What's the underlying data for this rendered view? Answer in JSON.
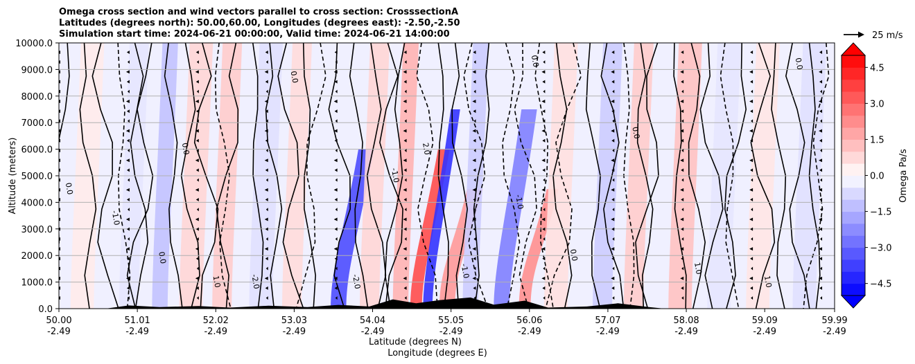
{
  "chart_data": {
    "type": "heatmap",
    "title_lines": [
      "Omega cross section and wind vectors parallel to cross section: CrosssectionA",
      "Latitudes (degrees north): 50.00,60.00, Longitudes (degrees east): -2.50,-2.50",
      "Simulation start time: 2024-06-21 00:00:00, Valid time: 2024-06-21 14:00:00"
    ],
    "ylabel": "Altitude (meters)",
    "xlabel_line1": "Latitude (degrees N)",
    "xlabel_line2": "Longitude (degrees E)",
    "ylim": [
      0,
      10000
    ],
    "y_ticks": [
      "0.0",
      "1000.0",
      "2000.0",
      "3000.0",
      "4000.0",
      "5000.0",
      "6000.0",
      "7000.0",
      "8000.0",
      "9000.0",
      "10000.0"
    ],
    "y_tick_values": [
      0,
      1000,
      2000,
      3000,
      4000,
      5000,
      6000,
      7000,
      8000,
      9000,
      10000
    ],
    "xlim": [
      50.0,
      59.99
    ],
    "x_tick_values": [
      50.0,
      51.01,
      52.02,
      53.03,
      54.04,
      55.05,
      56.06,
      57.07,
      58.08,
      59.09,
      59.99
    ],
    "x_ticks_lat": [
      "50.00",
      "51.01",
      "52.02",
      "53.03",
      "54.04",
      "55.05",
      "56.06",
      "57.07",
      "58.08",
      "59.09",
      "59.99"
    ],
    "x_ticks_lon": [
      "-2.49",
      "-2.49",
      "-2.49",
      "-2.49",
      "-2.49",
      "-2.49",
      "-2.49",
      "-2.49",
      "-2.49",
      "-2.49",
      "-2.49"
    ],
    "grid": "horizontal",
    "colorbar": {
      "label": "Omega Pa/s",
      "range": [
        -5.0,
        5.0
      ],
      "ticks": [
        "4.5",
        "3.0",
        "1.5",
        "0.0",
        "−1.5",
        "−3.0",
        "−4.5"
      ],
      "tick_values": [
        4.5,
        3.0,
        1.5,
        0.0,
        -1.5,
        -3.0,
        -4.5
      ],
      "extend": "both",
      "colormap": "bwr"
    },
    "vector_key": "25 m/s",
    "contour_label_values": [
      "0.0",
      "-1.0",
      "1.0",
      "-2.0",
      "2.0"
    ],
    "omega_bands": [
      {
        "lat": 50.3,
        "width": 0.3,
        "value": 0.4
      },
      {
        "lat": 50.9,
        "width": 0.25,
        "value": -0.5
      },
      {
        "lat": 51.3,
        "width": 0.2,
        "value": -1.2
      },
      {
        "lat": 51.7,
        "width": 0.3,
        "value": 0.8
      },
      {
        "lat": 52.1,
        "width": 0.25,
        "value": 1.0
      },
      {
        "lat": 52.6,
        "width": 0.3,
        "value": -0.6
      },
      {
        "lat": 53.0,
        "width": 0.25,
        "value": 0.7
      },
      {
        "lat": 53.6,
        "width": 0.2,
        "value": -3.5
      },
      {
        "lat": 54.0,
        "width": 0.25,
        "value": 0.8
      },
      {
        "lat": 54.4,
        "width": 0.2,
        "value": 1.5
      },
      {
        "lat": 54.6,
        "width": 0.15,
        "value": 3.5
      },
      {
        "lat": 54.75,
        "width": 0.12,
        "value": -4.0
      },
      {
        "lat": 55.0,
        "width": 0.2,
        "value": 2.0
      },
      {
        "lat": 55.3,
        "width": 0.2,
        "value": -1.0
      },
      {
        "lat": 55.7,
        "width": 0.2,
        "value": -2.5
      },
      {
        "lat": 56.0,
        "width": 0.15,
        "value": 2.2
      },
      {
        "lat": 56.4,
        "width": 0.3,
        "value": 0.6
      },
      {
        "lat": 57.0,
        "width": 0.25,
        "value": -1.0
      },
      {
        "lat": 57.4,
        "width": 0.25,
        "value": 1.0
      },
      {
        "lat": 58.0,
        "width": 0.3,
        "value": 1.2
      },
      {
        "lat": 58.5,
        "width": 0.3,
        "value": -0.5
      },
      {
        "lat": 59.0,
        "width": 0.3,
        "value": 0.5
      },
      {
        "lat": 59.6,
        "width": 0.3,
        "value": -0.6
      }
    ],
    "terrain": [
      {
        "lat": 50.0,
        "alt": 0
      },
      {
        "lat": 50.6,
        "alt": 0
      },
      {
        "lat": 50.9,
        "alt": 120
      },
      {
        "lat": 51.3,
        "alt": 60
      },
      {
        "lat": 51.8,
        "alt": 100
      },
      {
        "lat": 52.2,
        "alt": 40
      },
      {
        "lat": 52.7,
        "alt": 110
      },
      {
        "lat": 53.2,
        "alt": 60
      },
      {
        "lat": 53.6,
        "alt": 140
      },
      {
        "lat": 54.0,
        "alt": 80
      },
      {
        "lat": 54.3,
        "alt": 350
      },
      {
        "lat": 54.6,
        "alt": 200
      },
      {
        "lat": 54.9,
        "alt": 320
      },
      {
        "lat": 55.3,
        "alt": 420
      },
      {
        "lat": 55.6,
        "alt": 150
      },
      {
        "lat": 56.0,
        "alt": 300
      },
      {
        "lat": 56.3,
        "alt": 40
      },
      {
        "lat": 56.8,
        "alt": 80
      },
      {
        "lat": 57.2,
        "alt": 200
      },
      {
        "lat": 57.6,
        "alt": 60
      },
      {
        "lat": 57.8,
        "alt": 0
      },
      {
        "lat": 59.99,
        "alt": 0
      }
    ],
    "contour_labels": [
      {
        "lat": 50.1,
        "alt": 4500,
        "text": "0.0"
      },
      {
        "lat": 50.7,
        "alt": 3400,
        "text": "-1.0"
      },
      {
        "lat": 51.3,
        "alt": 1900,
        "text": "0.0"
      },
      {
        "lat": 51.6,
        "alt": 6000,
        "text": "0.0"
      },
      {
        "lat": 52.0,
        "alt": 1000,
        "text": "1.0"
      },
      {
        "lat": 52.5,
        "alt": 1000,
        "text": "-2.0"
      },
      {
        "lat": 53.0,
        "alt": 8700,
        "text": "0.0"
      },
      {
        "lat": 53.8,
        "alt": 1000,
        "text": "-2.0"
      },
      {
        "lat": 54.3,
        "alt": 5000,
        "text": "-1.0"
      },
      {
        "lat": 54.7,
        "alt": 6000,
        "text": "2.0"
      },
      {
        "lat": 55.2,
        "alt": 1400,
        "text": "-1.0"
      },
      {
        "lat": 56.1,
        "alt": 9300,
        "text": "0.0"
      },
      {
        "lat": 55.9,
        "alt": 4000,
        "text": "-1.0"
      },
      {
        "lat": 56.6,
        "alt": 2000,
        "text": "0.0"
      },
      {
        "lat": 57.4,
        "alt": 6600,
        "text": "0.0"
      },
      {
        "lat": 58.2,
        "alt": 1500,
        "text": "1.0"
      },
      {
        "lat": 59.1,
        "alt": 1000,
        "text": "1.0"
      },
      {
        "lat": 59.5,
        "alt": 9200,
        "text": "0.0"
      }
    ]
  }
}
